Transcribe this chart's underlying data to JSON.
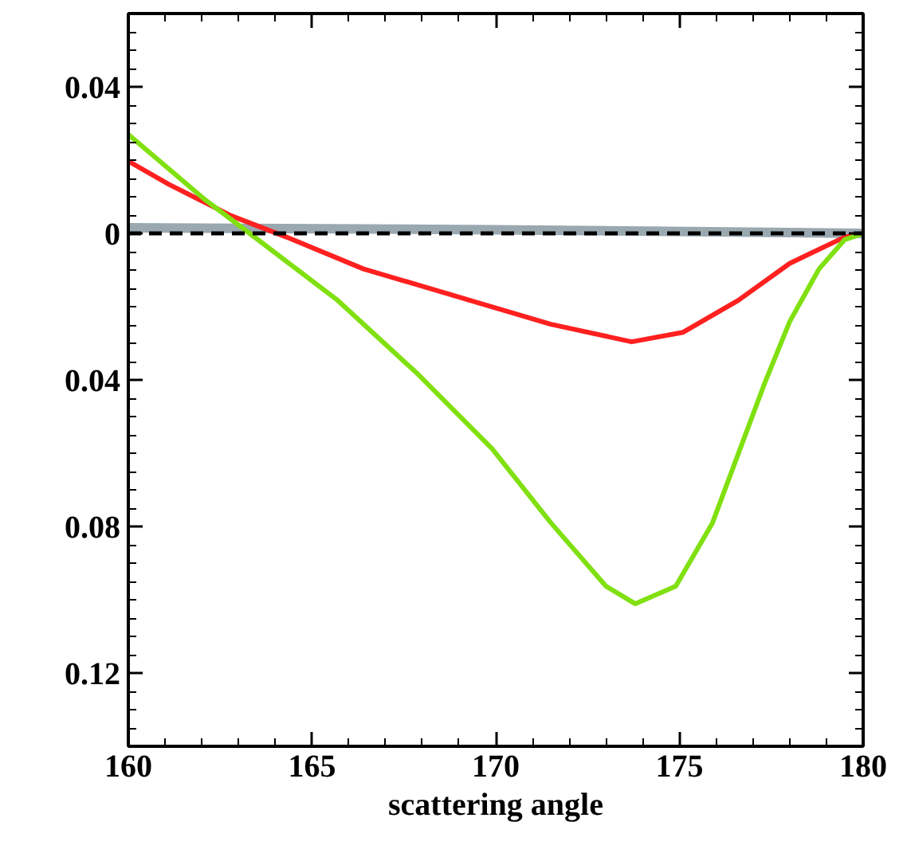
{
  "chart_data": {
    "type": "line",
    "xlabel": "scattering angle",
    "xlim": [
      160,
      180
    ],
    "xticks": [
      160,
      165,
      170,
      175,
      180
    ],
    "ylim": [
      -0.14,
      0.06
    ],
    "yticks": [
      {
        "value": 0.04,
        "label": "0.04"
      },
      0,
      {
        "value": -0.04,
        "label": "0.04"
      },
      {
        "value": -0.08,
        "label": "0.08"
      },
      {
        "value": -0.12,
        "label": "0.12"
      }
    ],
    "grid": false,
    "marker": "none",
    "line_style": "solid",
    "ref_lines": [
      {
        "axis": "y",
        "value": 0,
        "color": "#000000",
        "line_style": "dashed"
      }
    ],
    "series": [
      {
        "color": "#9aa8b0",
        "x": [
          160,
          170,
          180
        ],
        "values": [
          0.0015,
          0.001,
          0
        ]
      },
      {
        "color": "#ff2020",
        "x": [
          160,
          161.1,
          162.8,
          164.3,
          166.4,
          169.3,
          171.5,
          173.7,
          175.1,
          176.6,
          178.0,
          179.5,
          180
        ],
        "values": [
          0.0197,
          0.0134,
          0.0048,
          -0.001,
          -0.0097,
          -0.0183,
          -0.0248,
          -0.0296,
          -0.027,
          -0.0183,
          -0.0082,
          -0.001,
          0
        ]
      },
      {
        "color": "#80e010",
        "x": [
          160,
          162.1,
          163.3,
          165.7,
          167.9,
          169.9,
          171.5,
          173.0,
          173.8,
          174.9,
          175.9,
          177.3,
          178.0,
          178.8,
          179.5,
          180
        ],
        "values": [
          0.027,
          0.0091,
          0,
          -0.0183,
          -0.0386,
          -0.0588,
          -0.079,
          -0.0963,
          -0.1011,
          -0.0963,
          -0.079,
          -0.0414,
          -0.0241,
          -0.0097,
          -0.0017,
          0
        ]
      }
    ]
  }
}
